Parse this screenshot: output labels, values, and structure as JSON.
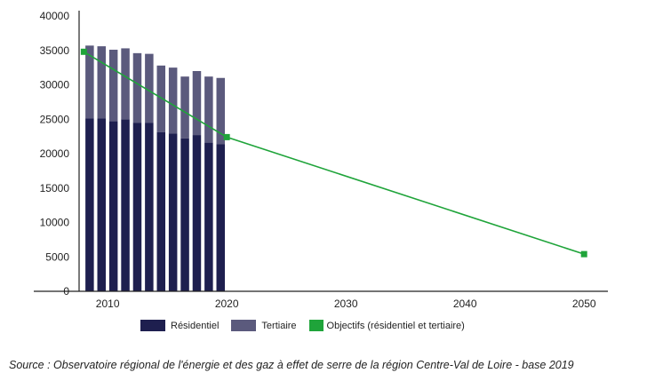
{
  "chart_data": {
    "type": "bar",
    "stacked": true,
    "x_categories": [
      2008,
      2009,
      2010,
      2011,
      2012,
      2013,
      2014,
      2015,
      2016,
      2017,
      2018,
      2019
    ],
    "series": [
      {
        "name": "Résidentiel",
        "kind": "bar",
        "color": "#1e1f4f",
        "values": [
          25100,
          25100,
          24700,
          25000,
          24500,
          24500,
          23100,
          22900,
          22200,
          22700,
          21600,
          21400
        ]
      },
      {
        "name": "Tertiaire",
        "kind": "bar",
        "color": "#5b5a7d",
        "values": [
          10600,
          10500,
          10400,
          10300,
          10100,
          10000,
          9700,
          9600,
          9000,
          9300,
          9600,
          9600
        ]
      },
      {
        "name": "Objectifs (résidentiel et tertiaire)",
        "kind": "line",
        "color": "#1fa43a",
        "points": [
          [
            2008,
            34800
          ],
          [
            2020,
            22400
          ],
          [
            2050,
            5400
          ]
        ]
      }
    ],
    "x_ticks": [
      2010,
      2020,
      2030,
      2040,
      2050
    ],
    "y_ticks": [
      0,
      5000,
      10000,
      15000,
      20000,
      25000,
      30000,
      35000,
      40000
    ],
    "xlim": [
      2007.6,
      2052.0
    ],
    "ylim": [
      0,
      40000
    ]
  },
  "legend": {
    "residentiel": "Résidentiel",
    "tertiaire": "Tertiaire",
    "objectifs": "Objectifs (résidentiel et tertiaire)"
  },
  "source": "Source : Observatoire régional de l'énergie et des gaz à effet de serre de la région Centre-Val de Loire - base 2019"
}
